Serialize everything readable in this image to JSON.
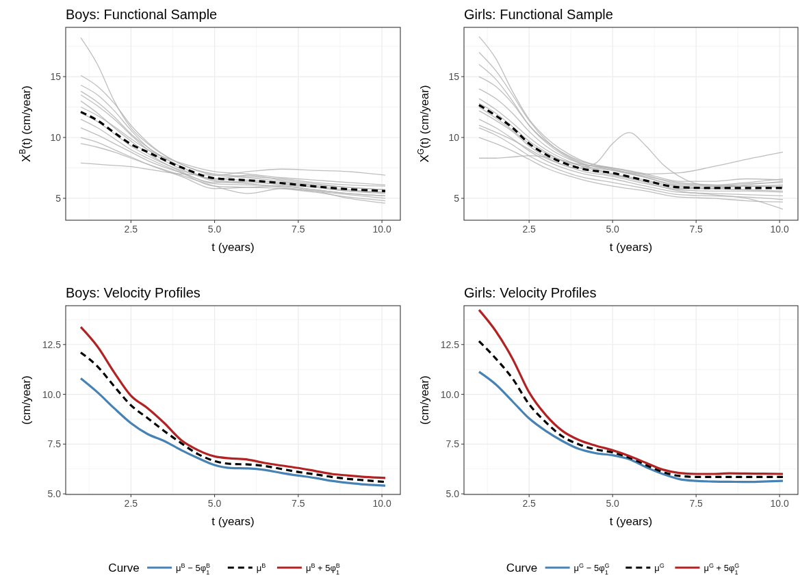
{
  "chart_data": [
    {
      "type": "line",
      "title": "Boys: Functional Sample",
      "xlabel": "t (years)",
      "ylabel": "X$^{B}$(t) (cm/year)",
      "x": [
        1,
        1.5,
        2,
        2.5,
        3,
        4,
        5,
        6,
        7,
        8,
        9,
        10.1
      ],
      "xlim": [
        0.55,
        10.55
      ],
      "xticks": [
        {
          "value": 2.5,
          "label": "2.5"
        },
        {
          "value": 5,
          "label": "5.0"
        },
        {
          "value": 7.5,
          "label": "7.5"
        },
        {
          "value": 10,
          "label": "10.0"
        }
      ],
      "ylim": [
        3.2,
        19.05
      ],
      "yticks": [
        5,
        10,
        15
      ],
      "grid": true,
      "legend": false,
      "series": [
        {
          "color": "#b3b3b3",
          "values": [
            18.2,
            16.0,
            13.0,
            10.8,
            9.5,
            7.8,
            6.9,
            6.7,
            6.4,
            6.1,
            5.9,
            5.7
          ]
        },
        {
          "color": "#b3b3b3",
          "values": [
            15.1,
            14.2,
            12.8,
            11.0,
            9.6,
            7.8,
            7.0,
            6.8,
            6.6,
            6.3,
            6.1,
            6.0
          ]
        },
        {
          "color": "#b3b3b3",
          "values": [
            14.3,
            13.5,
            12.2,
            10.6,
            9.2,
            7.6,
            6.5,
            6.3,
            6.2,
            5.9,
            5.6,
            5.4
          ]
        },
        {
          "color": "#b3b3b3",
          "values": [
            13.5,
            12.6,
            11.5,
            10.2,
            9.0,
            7.4,
            6.6,
            6.9,
            6.5,
            6.2,
            5.9,
            5.7
          ]
        },
        {
          "color": "#b3b3b3",
          "values": [
            13.0,
            12.0,
            10.8,
            9.7,
            8.7,
            7.2,
            6.2,
            6.1,
            6.0,
            5.7,
            5.4,
            5.2
          ]
        },
        {
          "color": "#b3b3b3",
          "values": [
            12.5,
            11.8,
            10.9,
            9.9,
            9.0,
            7.9,
            7.2,
            7.0,
            6.7,
            6.5,
            6.3,
            6.1
          ]
        },
        {
          "color": "#b3b3b3",
          "values": [
            11.5,
            10.8,
            9.9,
            9.0,
            8.3,
            7.1,
            6.0,
            5.9,
            5.8,
            5.5,
            5.1,
            4.8
          ]
        },
        {
          "color": "#b3b3b3",
          "values": [
            10.8,
            10.2,
            9.5,
            8.8,
            8.1,
            7.1,
            6.3,
            6.4,
            6.1,
            5.9,
            5.6,
            5.5
          ]
        },
        {
          "color": "#b3b3b3",
          "values": [
            10.0,
            9.6,
            9.0,
            8.4,
            7.8,
            6.8,
            5.8,
            5.9,
            6.0,
            5.7,
            5.4,
            5.2
          ]
        },
        {
          "color": "#b3b3b3",
          "values": [
            9.5,
            9.2,
            8.8,
            8.3,
            7.8,
            6.9,
            6.0,
            5.4,
            5.8,
            5.6,
            5.0,
            4.6
          ]
        },
        {
          "color": "#b3b3b3",
          "values": [
            7.9,
            7.8,
            7.7,
            7.6,
            7.4,
            7.0,
            6.9,
            7.2,
            7.4,
            7.3,
            7.2,
            6.9
          ]
        },
        {
          "color": "#b3b3b3",
          "values": [
            13.8,
            12.9,
            11.7,
            10.3,
            9.2,
            7.6,
            6.4,
            6.2,
            5.9,
            5.6,
            5.3,
            5.0
          ]
        },
        {
          "color": "#b3b3b3",
          "values": [
            12.0,
            11.3,
            10.3,
            9.3,
            8.5,
            7.3,
            6.6,
            6.5,
            6.3,
            6.0,
            5.7,
            5.5
          ]
        },
        {
          "color": "#000000",
          "line_style": "dashed",
          "values": [
            12.1,
            11.4,
            10.4,
            9.45,
            8.8,
            7.55,
            6.65,
            6.48,
            6.25,
            5.98,
            5.75,
            5.6
          ]
        }
      ]
    },
    {
      "type": "line",
      "title": "Girls: Functional Sample",
      "xlabel": "t (years)",
      "ylabel": "X$^{G}$(t) (cm/year)",
      "x": [
        1,
        1.5,
        2,
        2.5,
        3,
        4,
        5,
        6,
        7,
        8,
        9,
        10.1
      ],
      "xlim": [
        0.55,
        10.55
      ],
      "xticks": [
        {
          "value": 2.5,
          "label": "2.5"
        },
        {
          "value": 5,
          "label": "5.0"
        },
        {
          "value": 7.5,
          "label": "7.5"
        },
        {
          "value": 10,
          "label": "10.0"
        }
      ],
      "ylim": [
        3.2,
        19.05
      ],
      "yticks": [
        5,
        10,
        15
      ],
      "grid": true,
      "legend": false,
      "series": [
        {
          "color": "#b3b3b3",
          "values": [
            18.3,
            16.5,
            13.8,
            11.5,
            10.0,
            8.2,
            7.4,
            6.8,
            6.3,
            6.1,
            6.0,
            5.9
          ]
        },
        {
          "color": "#b3b3b3",
          "values": [
            17.0,
            15.5,
            13.5,
            11.4,
            9.8,
            8.0,
            7.3,
            6.7,
            6.1,
            6.0,
            6.2,
            6.3
          ]
        },
        {
          "color": "#b3b3b3",
          "values": [
            15.0,
            14.2,
            12.8,
            11.0,
            9.7,
            8.1,
            7.5,
            6.9,
            6.2,
            6.1,
            6.3,
            6.6
          ]
        },
        {
          "color": "#b3b3b3",
          "values": [
            14.0,
            13.2,
            12.0,
            10.5,
            9.3,
            7.9,
            7.4,
            6.7,
            6.0,
            5.9,
            6.0,
            6.1
          ]
        },
        {
          "color": "#b3b3b3",
          "values": [
            13.2,
            12.3,
            11.2,
            10.0,
            9.0,
            7.7,
            7.0,
            6.5,
            5.9,
            5.8,
            5.7,
            5.6
          ]
        },
        {
          "color": "#b3b3b3",
          "values": [
            12.2,
            11.4,
            10.5,
            9.3,
            8.4,
            7.3,
            6.8,
            6.2,
            5.7,
            5.6,
            5.6,
            5.5
          ]
        },
        {
          "color": "#b3b3b3",
          "values": [
            11.5,
            10.8,
            9.9,
            8.9,
            8.1,
            7.1,
            6.6,
            6.0,
            5.5,
            5.4,
            5.3,
            5.2
          ]
        },
        {
          "color": "#b3b3b3",
          "values": [
            10.8,
            10.2,
            9.4,
            8.5,
            7.8,
            6.8,
            6.3,
            5.8,
            5.3,
            5.2,
            5.1,
            4.9
          ]
        },
        {
          "color": "#b3b3b3",
          "values": [
            10.0,
            9.5,
            8.9,
            8.2,
            7.5,
            6.6,
            6.0,
            5.6,
            5.1,
            5.0,
            4.8,
            4.7
          ]
        },
        {
          "color": "#b3b3b3",
          "values": [
            8.3,
            8.3,
            8.4,
            8.5,
            8.4,
            7.8,
            7.5,
            7.0,
            6.4,
            6.4,
            6.6,
            6.5
          ]
        },
        {
          "color": "#b3b3b3",
          "x": [
            1,
            2,
            3,
            4,
            4.5,
            5,
            5.5,
            6,
            6.5,
            7,
            8,
            9,
            10.1
          ],
          "values": [
            11.0,
            9.8,
            8.3,
            7.5,
            7.9,
            9.5,
            10.4,
            9.3,
            7.8,
            6.8,
            6.0,
            6.0,
            6.0
          ]
        },
        {
          "color": "#b3b3b3",
          "values": [
            12.5,
            11.6,
            10.6,
            9.5,
            8.7,
            7.7,
            7.3,
            7.0,
            7.1,
            7.6,
            8.2,
            8.8
          ]
        },
        {
          "color": "#b3b3b3",
          "values": [
            16.0,
            14.8,
            13.0,
            11.0,
            9.6,
            7.9,
            7.0,
            6.3,
            5.6,
            5.3,
            5.0,
            4.1
          ]
        },
        {
          "color": "#b3b3b3",
          "values": [
            12.8,
            12.0,
            10.9,
            9.7,
            8.8,
            7.5,
            6.9,
            6.4,
            5.8,
            5.8,
            6.1,
            6.4
          ]
        },
        {
          "color": "#000000",
          "line_style": "dashed",
          "values": [
            12.67,
            11.8,
            10.8,
            9.5,
            8.6,
            7.48,
            7.08,
            6.45,
            5.9,
            5.85,
            5.85,
            5.85
          ]
        }
      ]
    },
    {
      "type": "line",
      "title": "Boys: Velocity Profiles",
      "xlabel": "t (years)",
      "ylabel": "(cm/year)",
      "x": [
        1,
        1.5,
        2,
        2.5,
        3,
        3.5,
        4,
        4.5,
        5,
        5.5,
        6,
        6.5,
        7,
        7.5,
        8,
        8.5,
        9,
        9.5,
        10.1
      ],
      "xlim": [
        0.55,
        10.55
      ],
      "xticks": [
        {
          "value": 2.5,
          "label": "2.5"
        },
        {
          "value": 5,
          "label": "5.0"
        },
        {
          "value": 7.5,
          "label": "7.5"
        },
        {
          "value": 10,
          "label": "10.0"
        }
      ],
      "ylim": [
        4.97,
        14.45
      ],
      "yticks": [
        {
          "value": 5,
          "label": "5.0"
        },
        {
          "value": 7.5,
          "label": "7.5"
        },
        {
          "value": 10,
          "label": "10.0"
        },
        {
          "value": 12.5,
          "label": "12.5"
        }
      ],
      "grid": true,
      "legend": "bottom",
      "legend_title": "Curve",
      "series": [
        {
          "name": "μ$^{B}$ − 5φ$_{1}$$^{B}$",
          "color": "#4682b4",
          "values": [
            10.8,
            10.1,
            9.3,
            8.55,
            8.0,
            7.65,
            7.2,
            6.8,
            6.45,
            6.3,
            6.28,
            6.2,
            6.05,
            5.92,
            5.8,
            5.65,
            5.55,
            5.47,
            5.41
          ]
        },
        {
          "name": "μ$^{B}$",
          "color": "#000000",
          "line_style": "dashed",
          "values": [
            12.1,
            11.4,
            10.4,
            9.45,
            8.8,
            8.15,
            7.55,
            7.0,
            6.65,
            6.5,
            6.48,
            6.4,
            6.25,
            6.1,
            5.98,
            5.85,
            5.75,
            5.68,
            5.6
          ]
        },
        {
          "name": "μ$^{B}$ + 5φ$_{1}$$^{B}$",
          "color": "#b22222",
          "values": [
            13.38,
            12.4,
            11.1,
            9.93,
            9.3,
            8.55,
            7.7,
            7.2,
            6.88,
            6.78,
            6.72,
            6.55,
            6.42,
            6.3,
            6.15,
            6.0,
            5.92,
            5.85,
            5.8
          ]
        }
      ]
    },
    {
      "type": "line",
      "title": "Girls: Velocity Profiles",
      "xlabel": "t (years)",
      "ylabel": "(cm/year)",
      "x": [
        1,
        1.5,
        2,
        2.5,
        3,
        3.5,
        4,
        4.5,
        5,
        5.5,
        6,
        6.5,
        7,
        7.5,
        8,
        8.5,
        9,
        9.5,
        10.1
      ],
      "xlim": [
        0.55,
        10.55
      ],
      "xticks": [
        {
          "value": 2.5,
          "label": "2.5"
        },
        {
          "value": 5,
          "label": "5.0"
        },
        {
          "value": 7.5,
          "label": "7.5"
        },
        {
          "value": 10,
          "label": "10.0"
        }
      ],
      "ylim": [
        4.97,
        14.45
      ],
      "yticks": [
        {
          "value": 5,
          "label": "5.0"
        },
        {
          "value": 7.5,
          "label": "7.5"
        },
        {
          "value": 10,
          "label": "10.0"
        },
        {
          "value": 12.5,
          "label": "12.5"
        }
      ],
      "grid": true,
      "legend": "bottom",
      "legend_title": "Curve",
      "series": [
        {
          "name": "μ$^{G}$ − 5φ$_{1}$$^{G}$",
          "color": "#4682b4",
          "values": [
            11.13,
            10.5,
            9.65,
            8.79,
            8.16,
            7.65,
            7.25,
            7.04,
            6.94,
            6.74,
            6.34,
            6.0,
            5.74,
            5.65,
            5.62,
            5.61,
            5.6,
            5.62,
            5.65
          ]
        },
        {
          "name": "μ$^{G}$",
          "color": "#000000",
          "line_style": "dashed",
          "values": [
            12.67,
            11.8,
            10.8,
            9.5,
            8.6,
            7.88,
            7.48,
            7.23,
            7.08,
            6.82,
            6.45,
            6.1,
            5.9,
            5.85,
            5.85,
            5.85,
            5.85,
            5.85,
            5.85
          ]
        },
        {
          "name": "μ$^{G}$ + 5φ$_{1}$$^{G}$",
          "color": "#b22222",
          "values": [
            14.24,
            13.18,
            11.8,
            10.1,
            8.96,
            8.16,
            7.7,
            7.42,
            7.19,
            6.9,
            6.56,
            6.22,
            6.05,
            6.0,
            6.0,
            6.03,
            6.02,
            6.01,
            6.0
          ]
        }
      ]
    }
  ]
}
